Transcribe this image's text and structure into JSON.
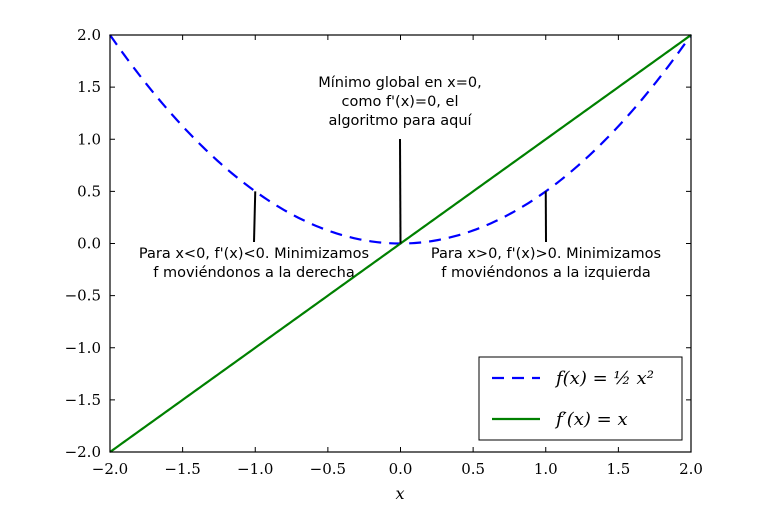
{
  "chart_data": {
    "type": "line",
    "xlabel": "x",
    "ylabel": "",
    "xlim": [
      -2.0,
      2.0
    ],
    "ylim": [
      -2.0,
      2.0
    ],
    "x_ticks": [
      "−2.0",
      "−1.5",
      "−1.0",
      "−0.5",
      "0.0",
      "0.5",
      "1.0",
      "1.5",
      "2.0"
    ],
    "y_ticks": [
      "−2.0",
      "−1.5",
      "−1.0",
      "−0.5",
      "0.0",
      "0.5",
      "1.0",
      "1.5",
      "2.0"
    ],
    "grid": false,
    "legend_position": "bottom-right",
    "series": [
      {
        "name": "f(x) = ½ x²",
        "function": "0.5*x^2",
        "x_range": [
          -2.0,
          2.0
        ],
        "color": "#0000ff",
        "style": "dashed"
      },
      {
        "name": "f′(x) = x",
        "function": "x",
        "x_range": [
          -2.0,
          2.0
        ],
        "color": "#008000",
        "style": "solid"
      }
    ],
    "annotations": [
      {
        "lines": [
          "Mínimo global en x=0,",
          "como f'(x)=0, el",
          "algoritmo para aquí"
        ],
        "x": 0.0,
        "y": 0.0
      },
      {
        "lines": [
          "Para x<0, f'(x)<0. Minimizamos",
          "f moviéndonos a la derecha"
        ],
        "x": -1.0,
        "y": 0.5
      },
      {
        "lines": [
          "Para x>0, f'(x)>0. Minimizamos",
          "f moviéndonos a la izquierda"
        ],
        "x": 1.0,
        "y": 0.5
      }
    ]
  }
}
